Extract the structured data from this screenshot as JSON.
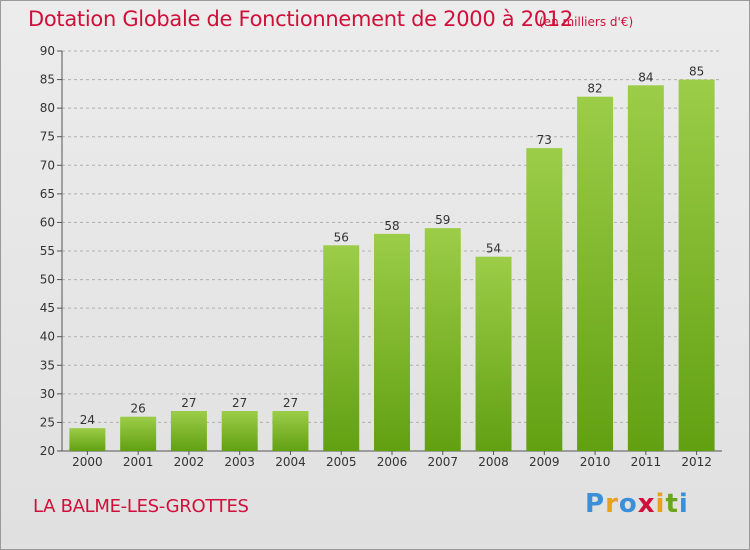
{
  "header": {
    "title": "Dotation Globale de Fonctionnement de 2000 à 2012",
    "units": "(en milliers d'€)"
  },
  "footer": {
    "commune": "LA BALME-LES-GROTTES",
    "logo_letters": [
      "P",
      "r",
      "o",
      "x",
      "i",
      "t",
      "i"
    ],
    "logo_colors": [
      "#3a8fd8",
      "#e8a11c",
      "#3a8fd8",
      "#d0103a",
      "#e8a11c",
      "#6aa61d",
      "#3a8fd8"
    ]
  },
  "colors": {
    "bar_top": "#9ccd48",
    "bar_bottom": "#62a012",
    "grid": "#b0b0b0"
  },
  "chart_data": {
    "type": "bar",
    "title": "Dotation Globale de Fonctionnement de 2000 à 2012",
    "xlabel": "",
    "ylabel": "",
    "categories": [
      "2000",
      "2001",
      "2002",
      "2003",
      "2004",
      "2005",
      "2006",
      "2007",
      "2008",
      "2009",
      "2010",
      "2011",
      "2012"
    ],
    "values": [
      24,
      26,
      27,
      27,
      27,
      56,
      58,
      59,
      54,
      73,
      82,
      84,
      85
    ],
    "ylim": [
      20,
      90
    ],
    "yticks": [
      20,
      25,
      30,
      35,
      40,
      45,
      50,
      55,
      60,
      65,
      70,
      75,
      80,
      85,
      90
    ],
    "grid": "horizontal dashed",
    "legend": "none"
  }
}
